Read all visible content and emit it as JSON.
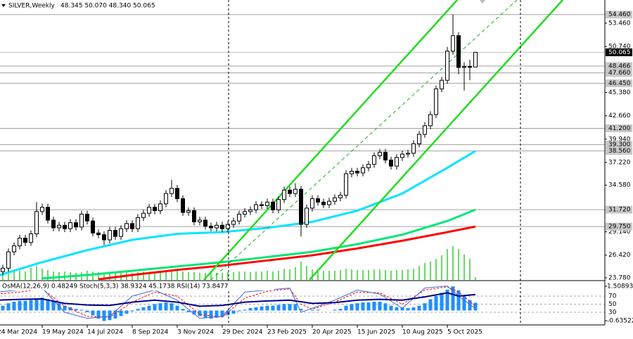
{
  "chart_data": {
    "type": "candlestick",
    "title": "SILVER,Weekly",
    "ohlc_header": "48.345 50.070 48.340 50.065",
    "open": [
      24.0,
      24.5,
      24.9,
      26.8,
      27.5,
      28.4,
      27.9,
      28.9,
      31.5,
      32.0,
      30.5,
      29.6,
      29.9,
      29.5,
      30.2,
      29.7,
      31.2,
      30.4,
      29.0,
      28.8,
      28.2,
      29.3,
      28.6,
      29.5,
      30.1,
      29.5,
      30.8,
      31.3,
      32.0,
      31.6,
      32.4,
      33.6,
      34.2,
      33.0,
      31.4,
      31.6,
      30.3,
      30.5,
      29.8,
      29.6,
      29.9,
      29.5,
      30.0,
      30.4,
      31.2,
      31.5,
      31.7,
      32.3,
      32.2,
      32.6,
      31.7,
      32.9,
      34.0,
      33.6,
      34.1,
      30.0,
      31.9,
      33.0,
      32.6,
      32.3,
      32.7,
      33.1,
      33.4,
      35.9,
      36.2,
      36.0,
      36.6,
      37.0,
      38.0,
      38.4,
      37.5,
      36.8,
      37.8,
      38.2,
      38.3,
      39.4,
      40.5,
      41.5,
      42.8,
      45.8,
      46.8,
      50.2,
      52.0,
      48.3,
      48.4,
      48.345
    ],
    "high": [
      24.9,
      25.3,
      27.2,
      27.9,
      28.8,
      28.8,
      29.3,
      32.6,
      32.4,
      32.4,
      30.9,
      30.3,
      30.3,
      30.6,
      30.6,
      31.6,
      31.6,
      30.8,
      29.4,
      29.2,
      29.7,
      29.7,
      29.9,
      30.5,
      30.5,
      31.2,
      31.7,
      32.4,
      32.4,
      32.8,
      34.0,
      35.2,
      34.6,
      33.4,
      32.0,
      32.0,
      30.9,
      30.9,
      30.2,
      30.3,
      30.3,
      30.4,
      30.8,
      31.6,
      31.9,
      32.1,
      32.7,
      32.7,
      33.0,
      33.0,
      33.3,
      34.4,
      34.4,
      34.8,
      34.5,
      32.3,
      33.4,
      33.4,
      33.0,
      33.1,
      33.5,
      33.8,
      36.3,
      36.6,
      36.6,
      37.0,
      37.4,
      38.4,
      38.8,
      38.8,
      37.9,
      38.2,
      38.6,
      38.7,
      39.8,
      40.9,
      41.9,
      43.2,
      46.2,
      47.2,
      50.7,
      54.46,
      52.4,
      48.9,
      49.2,
      50.07
    ],
    "low": [
      23.6,
      24.1,
      24.5,
      26.4,
      27.1,
      27.5,
      27.5,
      28.5,
      31.1,
      30.1,
      29.2,
      29.2,
      29.1,
      29.1,
      29.3,
      29.3,
      30.0,
      28.6,
      28.4,
      27.6,
      27.8,
      28.2,
      28.2,
      29.1,
      29.1,
      29.1,
      30.4,
      30.9,
      31.2,
      31.2,
      32.0,
      33.2,
      32.6,
      31.0,
      31.0,
      29.9,
      29.9,
      29.4,
      29.2,
      29.2,
      29.1,
      29.1,
      29.6,
      30.0,
      30.8,
      31.1,
      31.3,
      31.8,
      31.8,
      31.3,
      31.3,
      32.5,
      33.2,
      33.2,
      28.6,
      29.6,
      31.5,
      32.2,
      31.9,
      31.9,
      32.3,
      32.7,
      33.0,
      35.5,
      35.6,
      35.6,
      36.2,
      36.6,
      37.6,
      37.1,
      36.4,
      36.4,
      37.4,
      37.8,
      37.9,
      39.0,
      40.1,
      41.1,
      42.4,
      45.4,
      46.4,
      49.8,
      47.5,
      45.6,
      46.8,
      48.34
    ],
    "close": [
      24.5,
      24.9,
      26.8,
      27.5,
      28.4,
      27.9,
      28.9,
      31.5,
      32.0,
      30.5,
      29.6,
      29.9,
      29.5,
      30.2,
      29.7,
      31.2,
      30.4,
      29.0,
      28.8,
      28.2,
      29.3,
      28.6,
      29.5,
      30.1,
      29.5,
      30.8,
      31.3,
      32.0,
      31.6,
      32.4,
      33.6,
      34.2,
      33.0,
      31.4,
      31.6,
      30.3,
      30.5,
      29.8,
      29.6,
      29.9,
      29.5,
      30.0,
      30.4,
      31.2,
      31.5,
      31.7,
      32.3,
      32.2,
      32.6,
      31.7,
      32.9,
      34.0,
      33.6,
      34.1,
      30.0,
      31.9,
      33.0,
      32.6,
      32.3,
      32.7,
      33.1,
      33.4,
      35.9,
      36.2,
      36.0,
      36.6,
      37.0,
      38.0,
      38.4,
      37.5,
      36.8,
      37.8,
      38.2,
      38.3,
      39.4,
      40.5,
      41.5,
      42.8,
      45.8,
      46.8,
      50.2,
      52.0,
      48.3,
      48.4,
      48.345,
      50.065
    ],
    "up_color": "#ffffff",
    "down_color": "#000000",
    "wick_color": "#000000",
    "xticks": [
      {
        "value": 0,
        "label": "24 Mar 2024"
      },
      {
        "value": 8,
        "label": "19 May 2024"
      },
      {
        "value": 16,
        "label": "14 Jul 2024"
      },
      {
        "value": 24,
        "label": "8 Sep 2024"
      },
      {
        "value": 32,
        "label": "3 Nov 2024"
      },
      {
        "value": 40,
        "label": "29 Dec 2024"
      },
      {
        "value": 48,
        "label": "23 Feb 2025"
      },
      {
        "value": 56,
        "label": "20 Apr 2025"
      },
      {
        "value": 64,
        "label": "15 Jun 2025"
      },
      {
        "value": 72,
        "label": "10 Aug 2025"
      },
      {
        "value": 80,
        "label": "5 Oct 2025"
      }
    ],
    "ylim": [
      23.53,
      56.16
    ],
    "yticks": [
      {
        "value": 53.46,
        "label": "53.460"
      },
      {
        "value": 50.74,
        "label": "50.740"
      },
      {
        "value": 45.38,
        "label": "45.380"
      },
      {
        "value": 42.66,
        "label": "42.660"
      },
      {
        "value": 39.94,
        "label": "39.940"
      },
      {
        "value": 37.22,
        "label": "37.220"
      },
      {
        "value": 34.58,
        "label": "34.580"
      },
      {
        "value": 29.14,
        "label": "29.140"
      },
      {
        "value": 26.42,
        "label": "26.420"
      },
      {
        "value": 23.78,
        "label": "23.780"
      }
    ],
    "levels": [
      {
        "value": 54.46,
        "label": "54.460"
      },
      {
        "value": 48.466,
        "label": "48.466"
      },
      {
        "value": 47.66,
        "label": "47.660"
      },
      {
        "value": 46.45,
        "label": "46.450"
      },
      {
        "value": 41.2,
        "label": "41.200"
      },
      {
        "value": 39.3,
        "label": "39.300"
      },
      {
        "value": 38.56,
        "label": "38.560"
      },
      {
        "value": 31.72,
        "label": "31.720"
      },
      {
        "value": 29.75,
        "label": "29.750"
      }
    ],
    "level_color": "#a0a0a0",
    "current_price": {
      "value": 50.065,
      "label": "50.065"
    },
    "moving_averages": [
      {
        "color": "#00e5ff",
        "x": [
          0,
          8,
          16,
          24,
          32,
          40,
          48,
          56,
          64,
          72,
          80,
          85
        ],
        "values": [
          24.0,
          25.6,
          27.0,
          28.2,
          28.9,
          29.1,
          29.6,
          30.3,
          31.6,
          33.6,
          36.6,
          38.56
        ]
      },
      {
        "color": "#00e676",
        "x": [
          8,
          16,
          24,
          32,
          40,
          48,
          56,
          64,
          72,
          80,
          85
        ],
        "values": [
          23.7,
          24.1,
          24.6,
          25.1,
          25.6,
          26.2,
          26.8,
          27.7,
          28.8,
          30.4,
          31.72
        ]
      },
      {
        "color": "#ff0000",
        "x": [
          18,
          24,
          32,
          40,
          48,
          56,
          64,
          72,
          80,
          85
        ],
        "values": [
          23.6,
          24.1,
          24.7,
          25.2,
          25.8,
          26.4,
          27.2,
          28.1,
          29.1,
          29.75
        ]
      }
    ],
    "trendlines": [
      {
        "color": "#22dd22",
        "dashed": false,
        "x": [
          36.75,
          81.75
        ],
        "y": [
          23.54,
          56.16
        ]
      },
      {
        "color": "#22dd22",
        "dashed": false,
        "x": [
          55.5,
          100.5
        ],
        "y": [
          23.54,
          56.16
        ]
      },
      {
        "color": "#22aa22",
        "dashed": true,
        "x": [
          38,
          92.375
        ],
        "y": [
          23.54,
          56.16
        ]
      }
    ],
    "volume": {
      "color": "#32cd32",
      "lim": [
        0,
        60
      ],
      "values": [
        14,
        16,
        18,
        15,
        13,
        12,
        17,
        20,
        16,
        14,
        12,
        11,
        12,
        11,
        10,
        11,
        13,
        12,
        11,
        10,
        12,
        11,
        10,
        11,
        10,
        11,
        12,
        12,
        11,
        12,
        13,
        14,
        13,
        12,
        11,
        11,
        10,
        10,
        11,
        10,
        10,
        11,
        11,
        12,
        12,
        11,
        12,
        12,
        13,
        12,
        13,
        16,
        15,
        18,
        26,
        20,
        15,
        14,
        13,
        13,
        13,
        14,
        16,
        15,
        14,
        14,
        14,
        15,
        15,
        14,
        13,
        14,
        14,
        15,
        16,
        20,
        24,
        26,
        30,
        35,
        44,
        48,
        44,
        36,
        30,
        4
      ]
    },
    "indicator": {
      "label": "OsMA(12,26,9) 0.48249  Stoch(5,3,3) 38.9324 45.1738  RSI(14) 73.8477",
      "osma": {
        "color": "#1e90ff",
        "ylim": [
          -0.898,
          1.815
        ],
        "ticks": [
          1.50893,
          -0.63522
        ],
        "values": [
          0.2,
          0.3,
          0.45,
          0.55,
          0.6,
          0.6,
          0.65,
          0.75,
          0.8,
          0.7,
          0.55,
          0.45,
          0.3,
          0.2,
          0.1,
          0.05,
          -0.1,
          -0.3,
          -0.5,
          -0.65,
          -0.6,
          -0.5,
          -0.35,
          -0.2,
          -0.05,
          0.1,
          0.2,
          0.3,
          0.4,
          0.45,
          0.5,
          0.45,
          0.3,
          0.1,
          -0.1,
          -0.25,
          -0.35,
          -0.45,
          -0.5,
          -0.45,
          -0.4,
          -0.3,
          -0.2,
          -0.05,
          0.05,
          0.15,
          0.2,
          0.25,
          0.3,
          0.3,
          0.35,
          0.4,
          0.4,
          0.4,
          0.1,
          0.0,
          0.05,
          0.05,
          0.0,
          0.0,
          0.05,
          0.1,
          0.3,
          0.4,
          0.45,
          0.5,
          0.5,
          0.55,
          0.55,
          0.45,
          0.3,
          0.2,
          0.2,
          0.15,
          0.2,
          0.3,
          0.45,
          0.7,
          0.9,
          1.1,
          1.3,
          1.5,
          1.25,
          0.9,
          0.65,
          0.48249
        ]
      },
      "ylim": [
        -1.3,
        106.5
      ],
      "ticks": [
        70,
        50,
        30
      ],
      "rsi": {
        "color": "#00008b",
        "x": [
          0,
          4,
          8,
          12,
          16,
          20,
          24,
          28,
          32,
          36,
          40,
          44,
          48,
          52,
          56,
          60,
          64,
          68,
          72,
          76,
          80,
          82,
          85
        ],
        "values": [
          60,
          62,
          63,
          52,
          48,
          47,
          55,
          60,
          55,
          45,
          47,
          55,
          58,
          60,
          52,
          54,
          60,
          62,
          60,
          68,
          78,
          70,
          73.8477
        ]
      },
      "stoch_main": {
        "color": "#4169e1",
        "x": [
          0,
          4,
          8,
          12,
          16,
          20,
          24,
          28,
          32,
          36,
          40,
          44,
          48,
          52,
          54,
          56,
          60,
          64,
          68,
          72,
          76,
          80,
          82,
          85
        ],
        "values": [
          80,
          85,
          90,
          30,
          15,
          20,
          70,
          85,
          60,
          15,
          20,
          80,
          85,
          90,
          30,
          40,
          60,
          85,
          75,
          40,
          90,
          95,
          70,
          38.9324
        ]
      },
      "stoch_signal": {
        "color": "#ff0000",
        "x": [
          0,
          4,
          8,
          12,
          16,
          20,
          24,
          28,
          32,
          36,
          40,
          44,
          48,
          52,
          54,
          56,
          60,
          64,
          68,
          72,
          76,
          80,
          82,
          85
        ],
        "values": [
          75,
          80,
          88,
          45,
          20,
          18,
          55,
          80,
          70,
          25,
          18,
          65,
          82,
          88,
          50,
          38,
          55,
          80,
          78,
          50,
          85,
          93,
          80,
          45.1738
        ]
      }
    }
  }
}
